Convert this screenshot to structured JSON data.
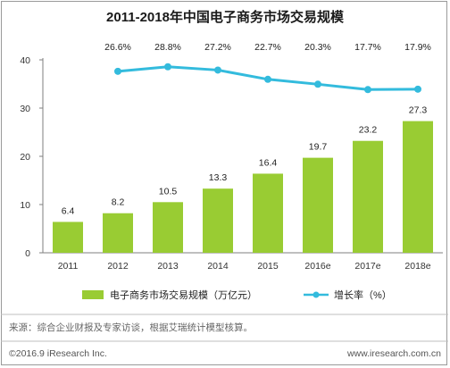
{
  "chart_data": {
    "type": "bar",
    "title": "2011-2018年中国电子商务市场交易规模",
    "categories": [
      "2011",
      "2012",
      "2013",
      "2014",
      "2015",
      "2016e",
      "2017e",
      "2018e"
    ],
    "series": [
      {
        "name": "电子商务市场交易规模（万亿元）",
        "type": "bar",
        "values": [
          6.4,
          8.2,
          10.5,
          13.3,
          16.4,
          19.7,
          23.2,
          27.3
        ],
        "labels": [
          "6.4",
          "8.2",
          "10.5",
          "13.3",
          "16.4",
          "19.7",
          "23.2",
          "27.3"
        ],
        "color": "#99cc33"
      },
      {
        "name": "增长率（%）",
        "type": "line",
        "values": [
          null,
          26.6,
          28.8,
          27.2,
          22.7,
          20.3,
          17.7,
          17.9
        ],
        "labels": [
          null,
          "26.6%",
          "28.8%",
          "27.2%",
          "22.7%",
          "20.3%",
          "17.7%",
          "17.9%"
        ],
        "color": "#33bbdd"
      }
    ],
    "yticks": [
      "0",
      "10",
      "20",
      "30",
      "40"
    ],
    "ylim": [
      0,
      40
    ],
    "grid": false,
    "legend_position": "bottom"
  },
  "footer": {
    "source": "来源：综合企业财报及专家访谈，根据艾瑞统计模型核算。",
    "copyright": "©2016.9 iResearch Inc.",
    "website": "www.iresearch.com.cn"
  }
}
